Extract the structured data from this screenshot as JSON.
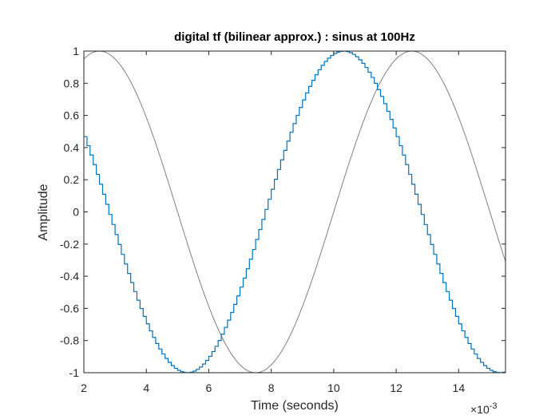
{
  "chart_data": {
    "type": "line",
    "title": "digital tf (bilinear approx.) : sinus at 100Hz",
    "xlabel": "Time (seconds)",
    "ylabel": "Amplitude",
    "x_exponent_base": "×10",
    "x_exponent_power": "-3",
    "xlim": [
      0.002,
      0.0155
    ],
    "ylim": [
      -1,
      1
    ],
    "x_ticks": [
      0.002,
      0.004,
      0.006,
      0.008,
      0.01,
      0.012,
      0.014
    ],
    "x_tick_labels": [
      "2",
      "4",
      "6",
      "8",
      "10",
      "12",
      "14"
    ],
    "y_ticks": [
      -1,
      -0.8,
      -0.6,
      -0.4,
      -0.2,
      0,
      0.2,
      0.4,
      0.6,
      0.8,
      1
    ],
    "y_tick_labels": [
      "-1",
      "-0.8",
      "-0.6",
      "-0.4",
      "-0.2",
      "0",
      "0.2",
      "0.4",
      "0.6",
      "0.8",
      "1"
    ],
    "grid": false,
    "series": [
      {
        "kind": "continuous",
        "color": "#808080",
        "frequency_hz": 100,
        "amplitude": 1,
        "phase_deg": 0,
        "time_range": [
          0.002,
          0.0155
        ],
        "sample_step": 5e-05
      },
      {
        "kind": "stairs",
        "color": "#0072bd",
        "frequency_hz": 100,
        "amplitude": 1,
        "time_shift_s": 0.000275,
        "sample_period_s": 0.0001,
        "time_range": [
          0.002,
          0.0155
        ]
      }
    ]
  }
}
